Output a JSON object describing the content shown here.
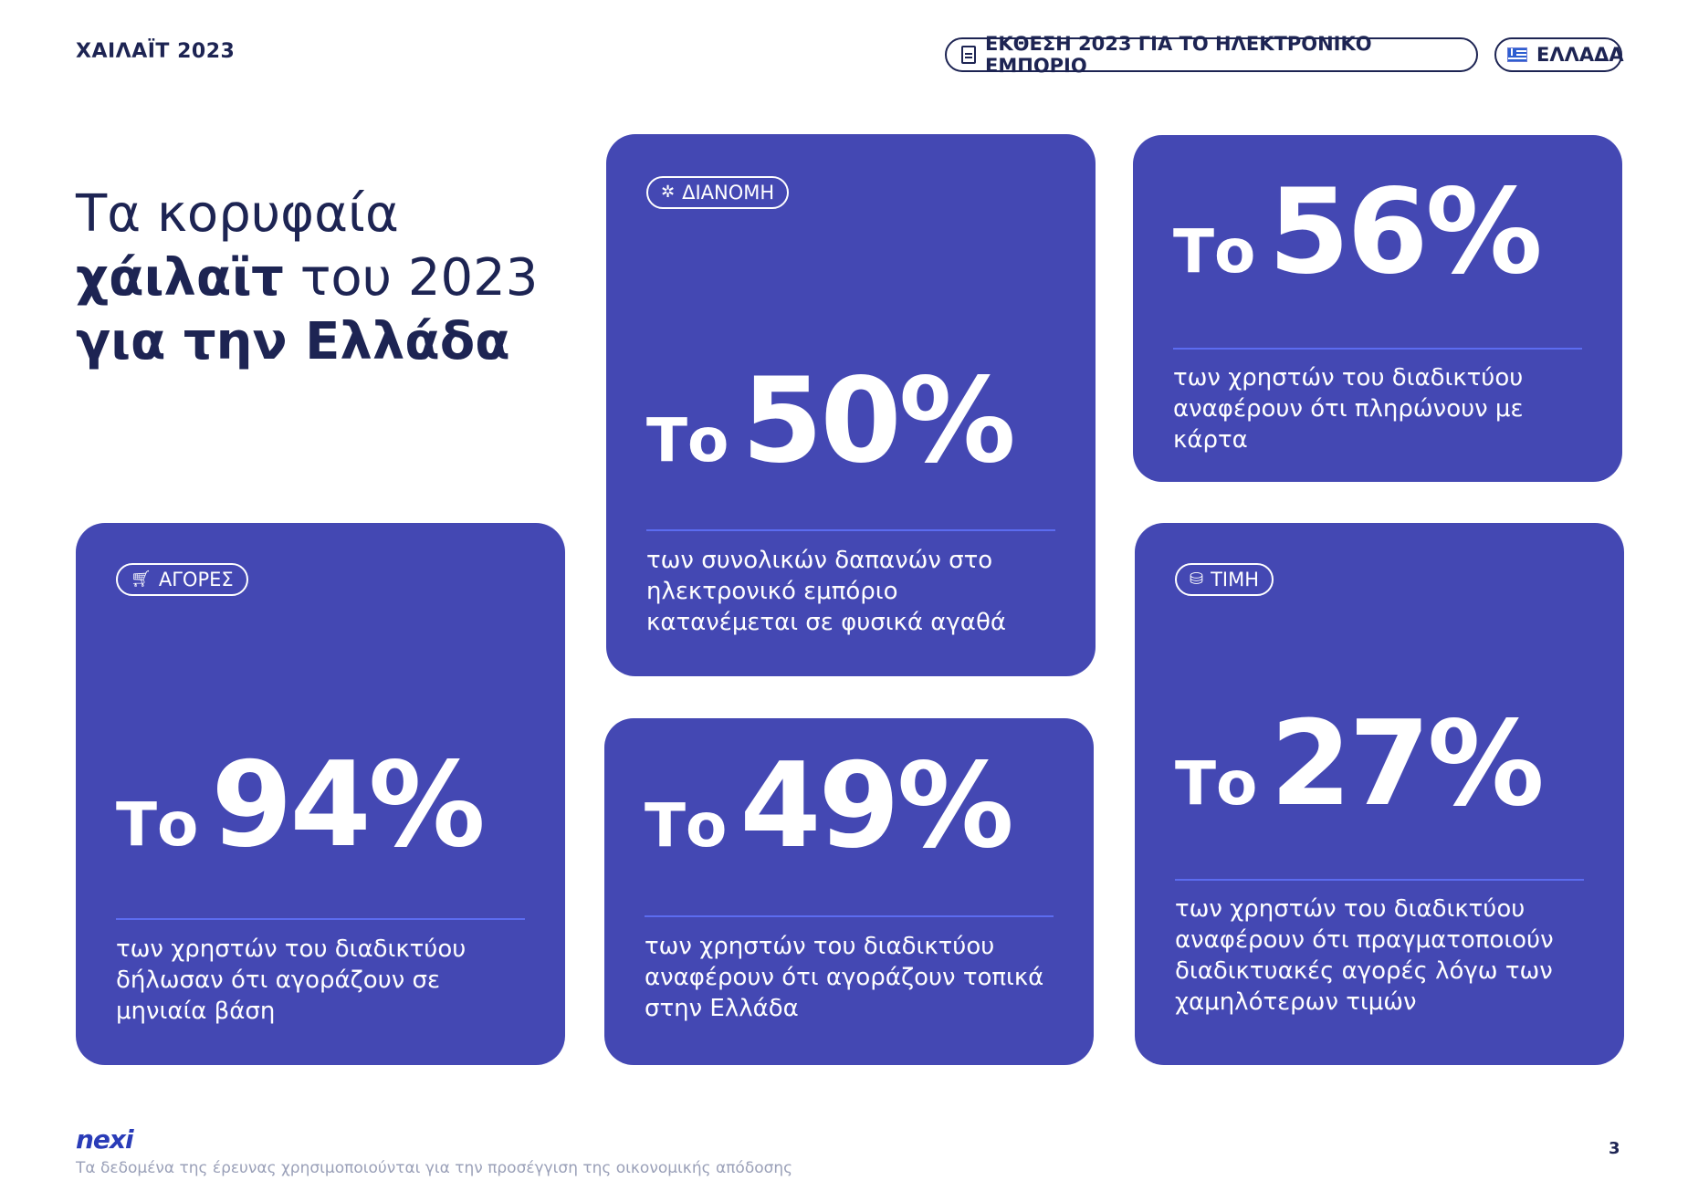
{
  "header": {
    "brand": "ΧΑΙΛΑΪΤ 2023",
    "report_label": "ΕΚΘΕΣΗ 2023 ΓΙΑ ΤΟ ΗΛΕΚΤΡΟΝΙΚΟ ΕΜΠΟΡΙΟ",
    "country_label": "ΕΛΛΑΔΑ",
    "report_icon": "document-icon",
    "country_icon": "greek-flag-icon"
  },
  "headline": {
    "line1": "Τα κορυφαία",
    "line2_bold": "χάιλαϊτ",
    "line2_rest": " του 2023",
    "line3": "για την Ελλάδα"
  },
  "cards": {
    "distribution": {
      "tag": "ΔΙΑΝΟΜΗ",
      "tag_icon": "network-icon",
      "prefix": "Το",
      "value": "50%",
      "desc": "των συνολικών δαπανών στο ηλεκτρονικό εμπόριο κατανέμεται σε φυσικά αγαθά"
    },
    "card_payment": {
      "prefix": "Το",
      "value": "56%",
      "desc": "των χρηστών του διαδικτύου αναφέρουν ότι πληρώνουν με κάρτα"
    },
    "purchases": {
      "tag": "ΑΓΟΡΕΣ",
      "tag_icon": "shopping-cart-icon",
      "prefix": "Το",
      "value": "94%",
      "desc": "των χρηστών του διαδικτύου δήλωσαν ότι αγοράζουν σε μηνιαία βάση"
    },
    "local": {
      "prefix": "Το",
      "value": "49%",
      "desc": "των χρηστών του διαδικτύου αναφέρουν ότι αγοράζουν τοπικά στην Ελλάδα"
    },
    "price": {
      "tag": "ΤΙΜΗ",
      "tag_icon": "coins-icon",
      "prefix": "Το",
      "value": "27%",
      "desc": "των χρηστών του διαδικτύου αναφέρουν ότι πραγματοποιούν διαδικτυακές αγορές λόγω των χαμηλότερων τιμών"
    }
  },
  "footer": {
    "logo": "nexi",
    "note": "Τα δεδομένα της έρευνας χρησιμοποιούνται για την προσέγγιση της οικονομικής απόδοσης",
    "page": "3"
  },
  "colors": {
    "card_bg": "#4448b3",
    "navy": "#1d2453",
    "rule": "#5c6cf0"
  }
}
